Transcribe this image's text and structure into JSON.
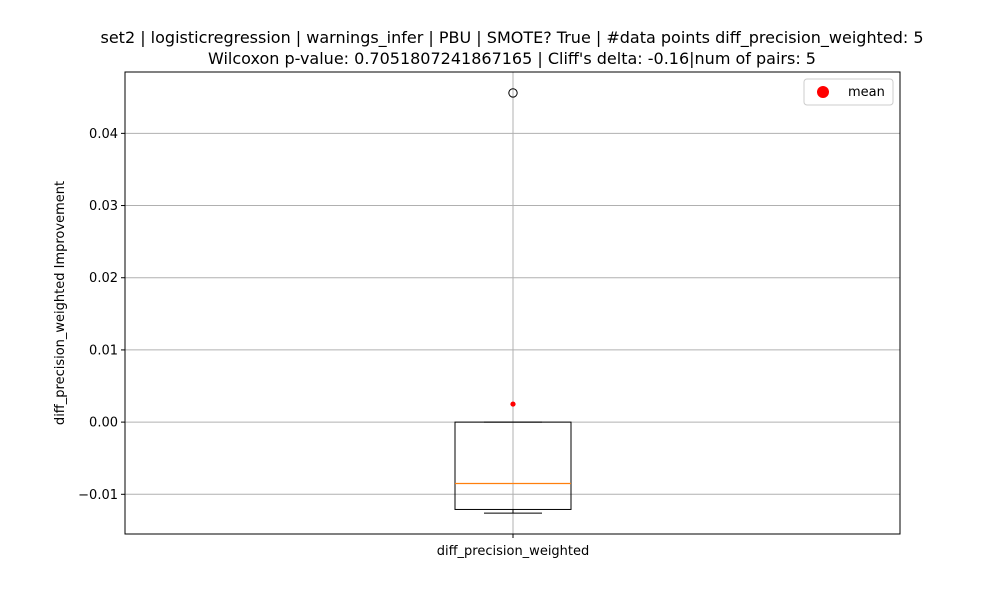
{
  "chart_data": {
    "type": "boxplot",
    "title_line1": "set2 | logisticregression | warnings_infer | PBU | SMOTE? True | #data points diff_precision_weighted: 5",
    "title_line2": "Wilcoxon p-value: 0.7051807241867165 | Cliff's delta: -0.16|num of pairs: 5",
    "ylabel": "diff_precision_weighted Improvement",
    "category": "diff_precision_weighted",
    "ylim": [
      -0.0155,
      0.0485
    ],
    "yticks": [
      -0.01,
      0.0,
      0.01,
      0.02,
      0.03,
      0.04
    ],
    "ytick_labels": [
      "−0.01",
      "0.00",
      "0.01",
      "0.02",
      "0.03",
      "0.04"
    ],
    "grid": true,
    "box": {
      "q1": -0.0121,
      "median": -0.0085,
      "q3": 0.0,
      "whisker_low": -0.0126,
      "whisker_high": 0.0,
      "outliers": [
        0.0456
      ],
      "mean": 0.0025
    },
    "colors": {
      "median": "#ff7f0e",
      "mean": "#ff0000",
      "grid": "#b0b0b0"
    },
    "legend": {
      "placement": "top-right",
      "label": "mean"
    }
  }
}
